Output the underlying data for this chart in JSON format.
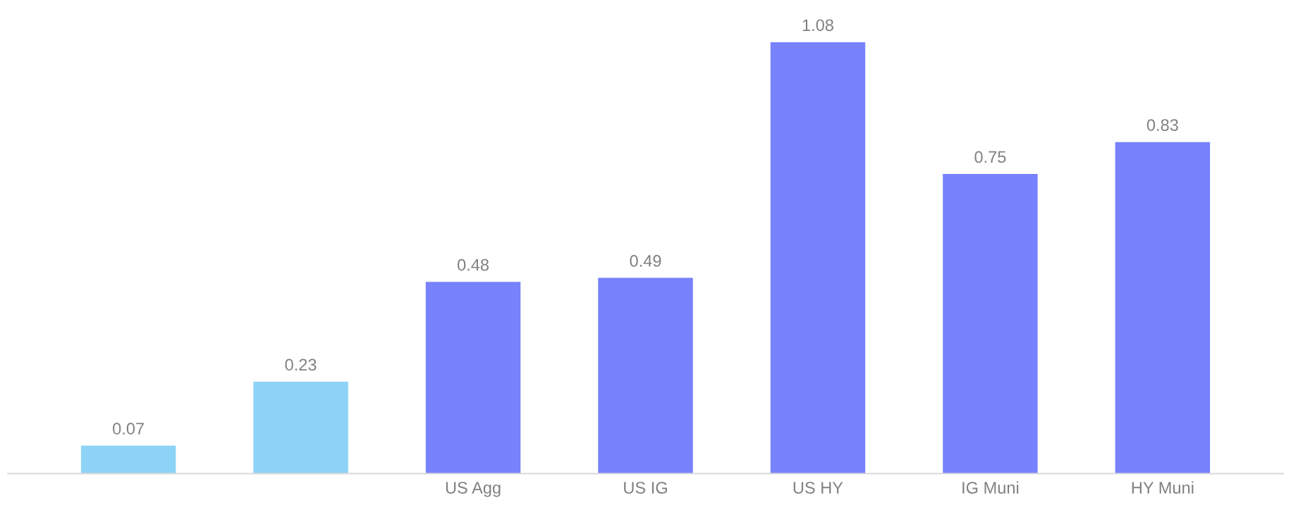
{
  "chart_data": {
    "type": "bar",
    "categories": [
      null,
      null,
      "US Agg",
      "US IG",
      "US HY",
      "IG Muni",
      "HY Muni"
    ],
    "values": [
      0.07,
      0.23,
      0.48,
      0.49,
      1.08,
      0.75,
      0.83
    ],
    "colors": [
      "#8dd3f7",
      "#8dd3f7",
      "#7782fc",
      "#7782fc",
      "#7782fc",
      "#7782fc",
      "#7782fc"
    ],
    "data_labels": true,
    "grid": false,
    "tick_labels": "x"
  }
}
